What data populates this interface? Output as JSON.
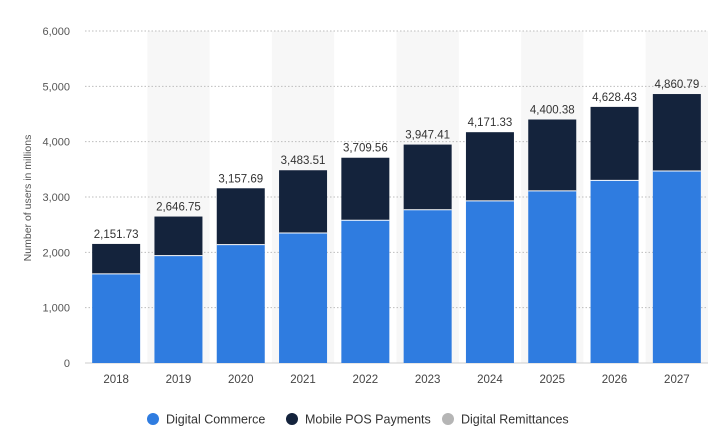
{
  "chart_data": {
    "type": "bar",
    "stacked": true,
    "categories": [
      "2018",
      "2019",
      "2020",
      "2021",
      "2022",
      "2023",
      "2024",
      "2025",
      "2026",
      "2027"
    ],
    "series": [
      {
        "name": "Digital Commerce",
        "color": "#2f7ce0",
        "values": [
          1610,
          1940,
          2140,
          2350,
          2580,
          2770,
          2930,
          3110,
          3300,
          3470
        ]
      },
      {
        "name": "Mobile POS Payments",
        "color": "#14233c",
        "values": [
          541.73,
          706.75,
          1017.69,
          1133.51,
          1129.56,
          1177.41,
          1241.33,
          1290.38,
          1328.43,
          1390.79
        ]
      },
      {
        "name": "Digital Remittances",
        "color": "#b5b5b5",
        "values": [
          0,
          0,
          0,
          0,
          0,
          0,
          0,
          0,
          0,
          0
        ]
      }
    ],
    "totals": [
      2151.73,
      2646.75,
      3157.69,
      3483.51,
      3709.56,
      3947.41,
      4171.33,
      4400.38,
      4628.43,
      4860.79
    ],
    "total_labels": [
      "2,151.73",
      "2,646.75",
      "3,157.69",
      "3,483.51",
      "3,709.56",
      "3,947.41",
      "4,171.33",
      "4,400.38",
      "4,628.43",
      "4,860.79"
    ],
    "ylabel": "Number of users in millions",
    "ylim": [
      0,
      6000
    ],
    "yticks": [
      0,
      1000,
      2000,
      3000,
      4000,
      5000,
      6000
    ],
    "ytick_labels": [
      "0",
      "1,000",
      "2,000",
      "3,000",
      "4,000",
      "5,000",
      "6,000"
    ],
    "grid": true,
    "legend_position": "bottom"
  }
}
